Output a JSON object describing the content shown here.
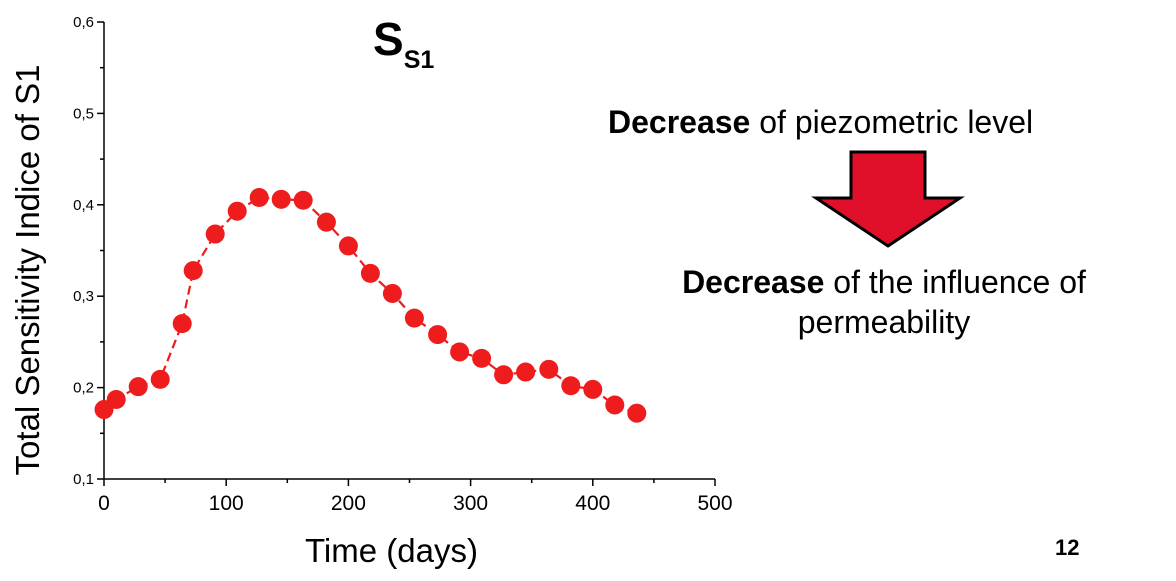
{
  "chart_data": {
    "type": "scatter",
    "title_main": "S",
    "title_sub": "S1",
    "xlabel": "Time (days)",
    "ylabel": "Total Sensitivity Indice of S1",
    "xlim": [
      0,
      500
    ],
    "ylim": [
      0.1,
      0.6
    ],
    "xticks": [
      0,
      100,
      200,
      300,
      400,
      500
    ],
    "yticks": [
      0.1,
      0.2,
      0.3,
      0.4,
      0.5,
      0.6
    ],
    "xtick_labels": [
      "0",
      "100",
      "200",
      "300",
      "400",
      "500"
    ],
    "ytick_labels": [
      "0,1",
      "0,2",
      "0,3",
      "0,4",
      "0,5",
      "0,6"
    ],
    "grid": false,
    "series": [
      {
        "color": "#ee1c1c",
        "connected": "dashed",
        "x": [
          0,
          10,
          28,
          46,
          64,
          73,
          91,
          109,
          127,
          145,
          163,
          182,
          200,
          218,
          236,
          254,
          273,
          291,
          309,
          327,
          345,
          364,
          382,
          400,
          418,
          436
        ],
        "y": [
          0.176,
          0.187,
          0.201,
          0.209,
          0.27,
          0.328,
          0.368,
          0.393,
          0.408,
          0.406,
          0.405,
          0.381,
          0.355,
          0.325,
          0.303,
          0.276,
          0.258,
          0.239,
          0.232,
          0.214,
          0.217,
          0.22,
          0.202,
          0.198,
          0.181,
          0.172
        ]
      }
    ]
  },
  "annotations": {
    "line1_bold": "Decrease",
    "line1_rest": " of piezometric level",
    "line2_bold": "Decrease",
    "line2_rest": " of the influence of permeability",
    "arrow_color": "#e0102a"
  },
  "page_number": "12"
}
